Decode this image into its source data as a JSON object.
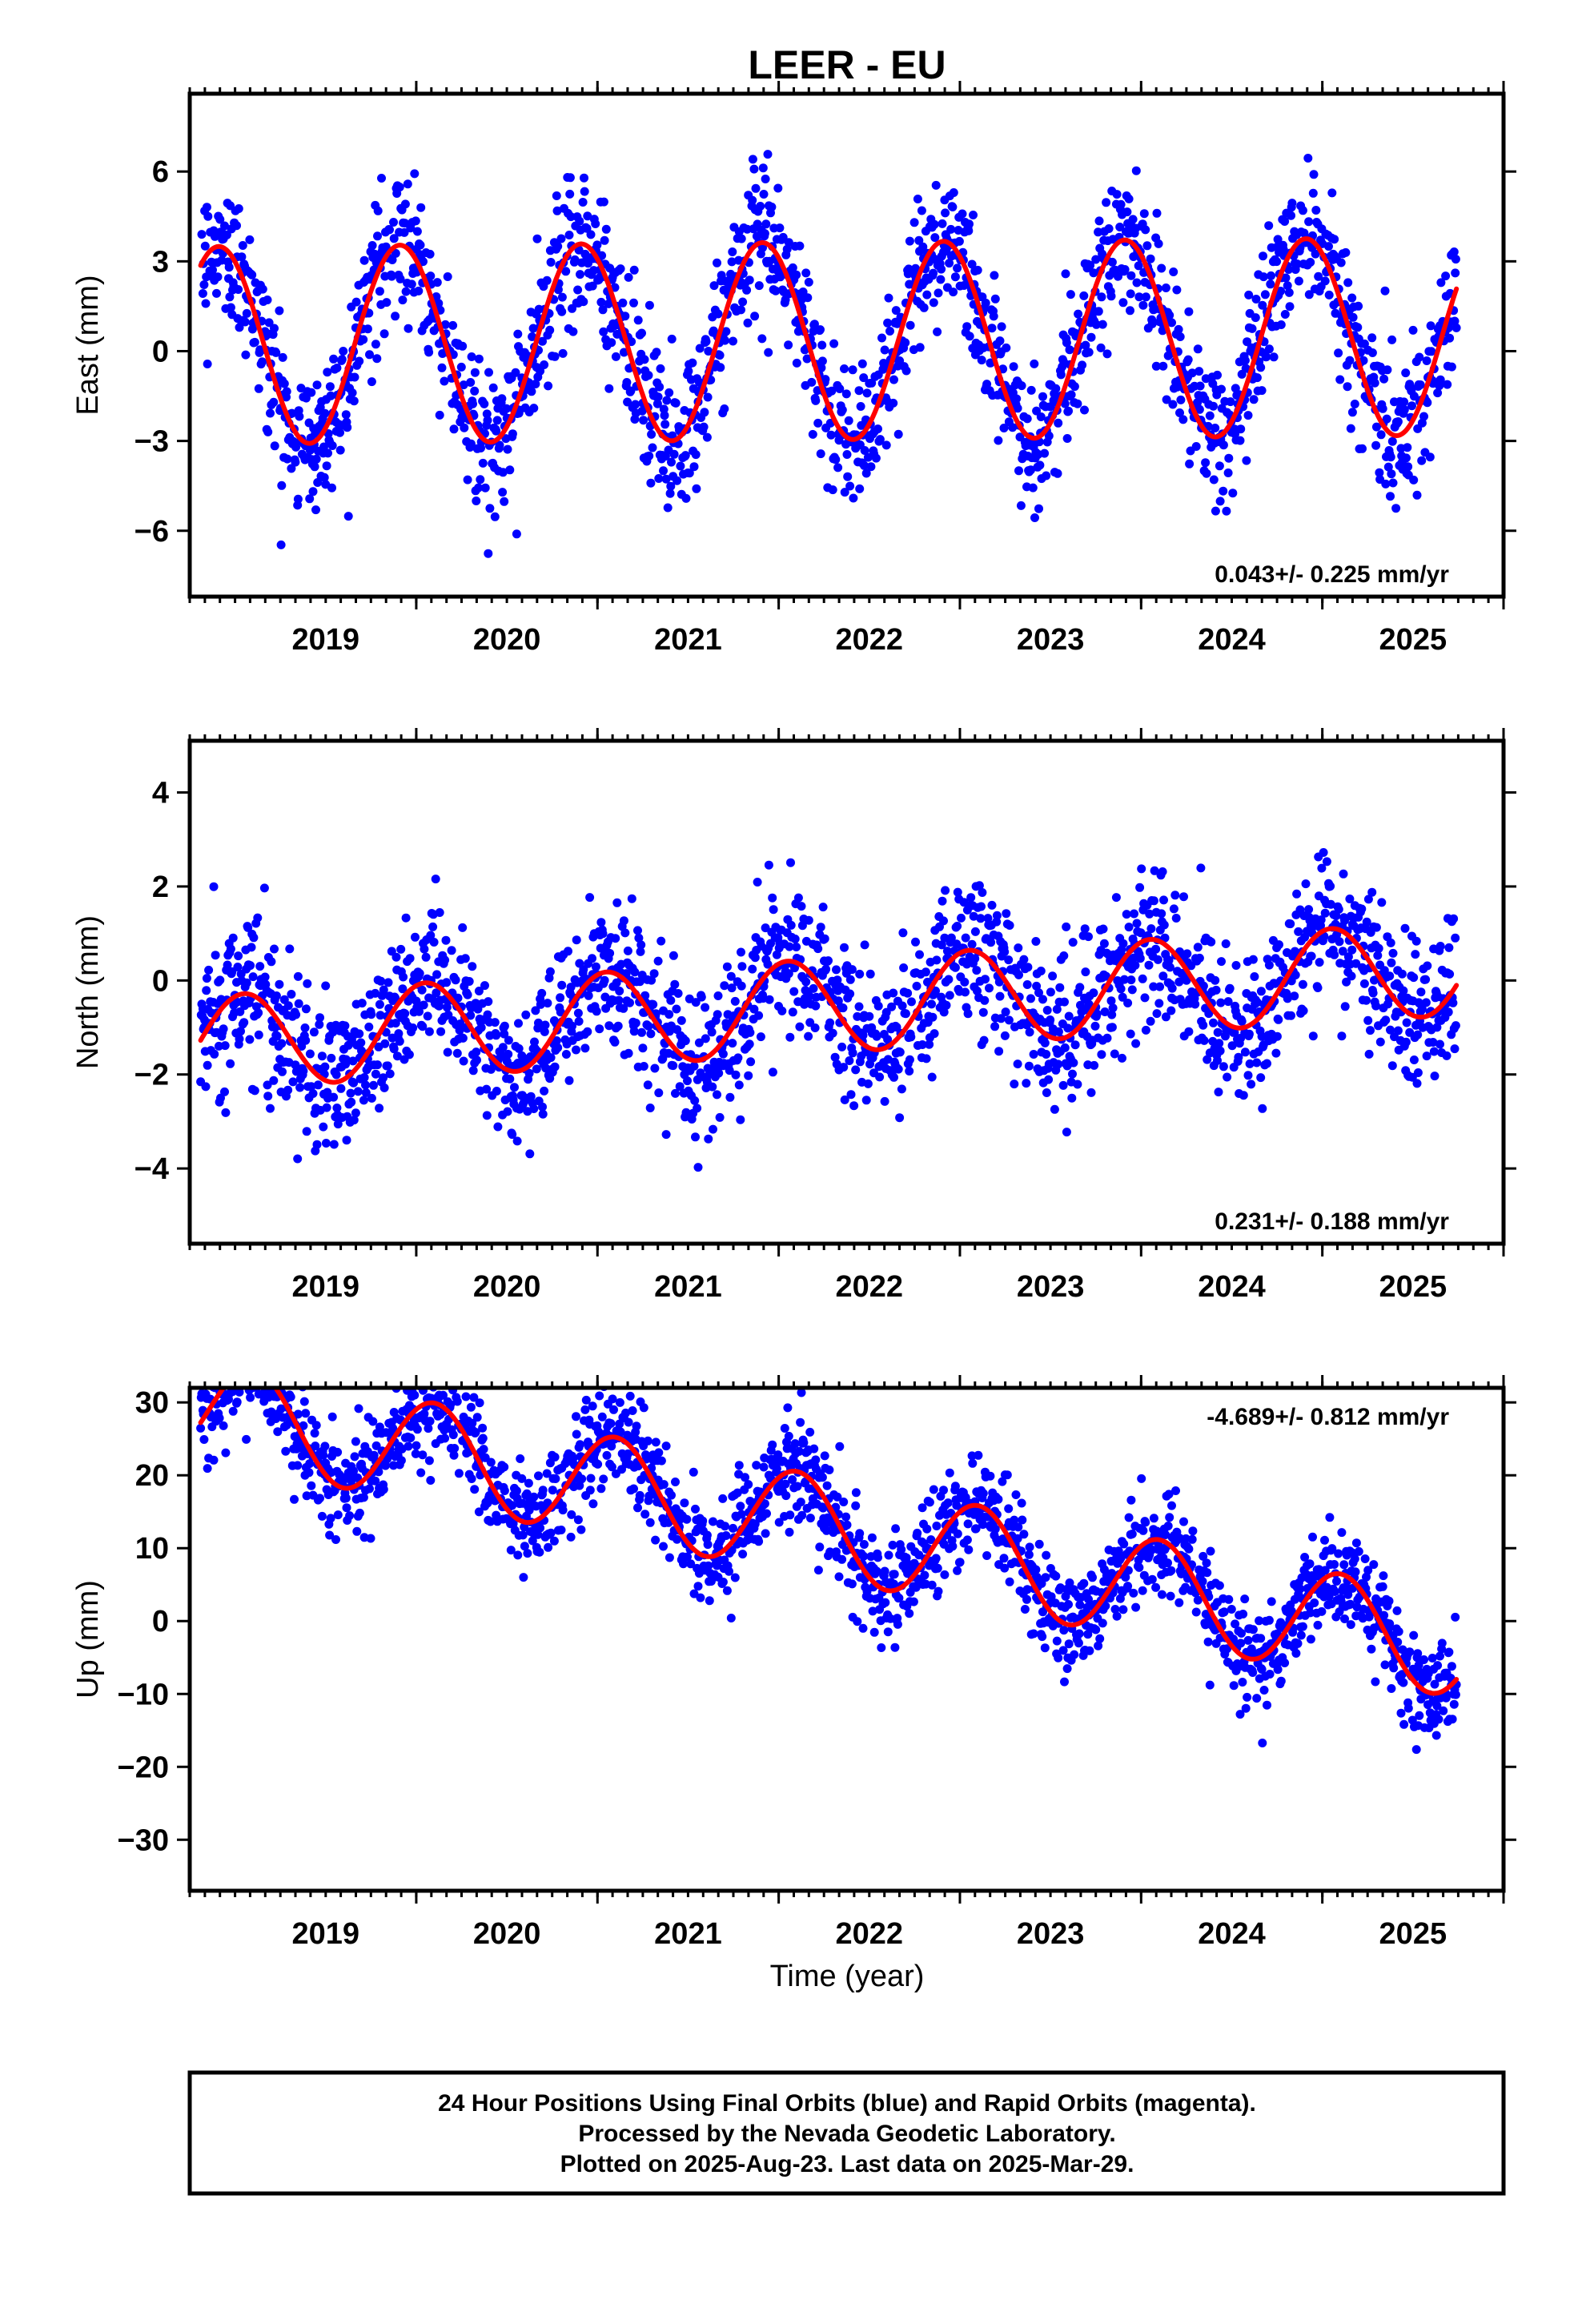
{
  "title": "LEER - EU",
  "xlabel": "Time (year)",
  "footer": [
    "24 Hour Positions Using Final Orbits (blue) and Rapid Orbits (magenta).",
    "Processed by the Nevada Geodetic Laboratory.",
    "Plotted on 2025-Aug-23. Last data on 2025-Mar-29."
  ],
  "colors": {
    "data": "#0000ff",
    "model": "#ff0000",
    "frame": "#000000"
  },
  "chart_data": [
    {
      "type": "scatter",
      "title": "LEER - EU",
      "ylabel": "East (mm)",
      "xlabel": "",
      "xlim": [
        2018.25,
        2025.5
      ],
      "ylim": [
        -8.2,
        8.6
      ],
      "x_ticks": [
        2019,
        2020,
        2021,
        2022,
        2023,
        2024,
        2025
      ],
      "y_ticks": [
        -6,
        -3,
        0,
        3,
        6
      ],
      "rate_label": "0.043+/- 0.225 mm/yr",
      "rate_position": "bottom-right",
      "data_start": 2018.31,
      "data_end": 2025.24,
      "model": {
        "offset": 0.33,
        "trend_mm_per_yr": 0.043,
        "annual_amplitude": 3.3,
        "annual_phase_peak": 0.41,
        "scatter_sd": 1.2
      }
    },
    {
      "type": "scatter",
      "ylabel": "North (mm)",
      "xlabel": "",
      "xlim": [
        2018.25,
        2025.5
      ],
      "ylim": [
        -5.6,
        5.1
      ],
      "x_ticks": [
        2019,
        2020,
        2021,
        2022,
        2023,
        2024,
        2025
      ],
      "y_ticks": [
        -4,
        -2,
        0,
        2,
        4
      ],
      "rate_label": "0.231+/- 0.188 mm/yr",
      "rate_position": "bottom-right",
      "data_start": 2018.31,
      "data_end": 2025.24,
      "model": {
        "offset": -0.6,
        "trend_mm_per_yr": 0.231,
        "annual_amplitude": 1.0,
        "annual_phase_peak": 0.55,
        "scatter_sd": 0.8
      }
    },
    {
      "type": "scatter",
      "ylabel": "Up (mm)",
      "xlabel": "Time (year)",
      "xlim": [
        2018.25,
        2025.5
      ],
      "ylim": [
        -37,
        32
      ],
      "x_ticks": [
        2019,
        2020,
        2021,
        2022,
        2023,
        2024,
        2025
      ],
      "y_ticks": [
        -30,
        -20,
        -10,
        0,
        10,
        20,
        30
      ],
      "rate_label": "-4.689+/- 0.812 mm/yr",
      "rate_position": "top-right",
      "data_start": 2018.31,
      "data_end": 2025.24,
      "model": {
        "offset": 14.0,
        "trend_mm_per_yr": -4.689,
        "annual_amplitude": 7.0,
        "annual_phase_peak": 0.6,
        "scatter_sd": 3.5
      }
    }
  ]
}
